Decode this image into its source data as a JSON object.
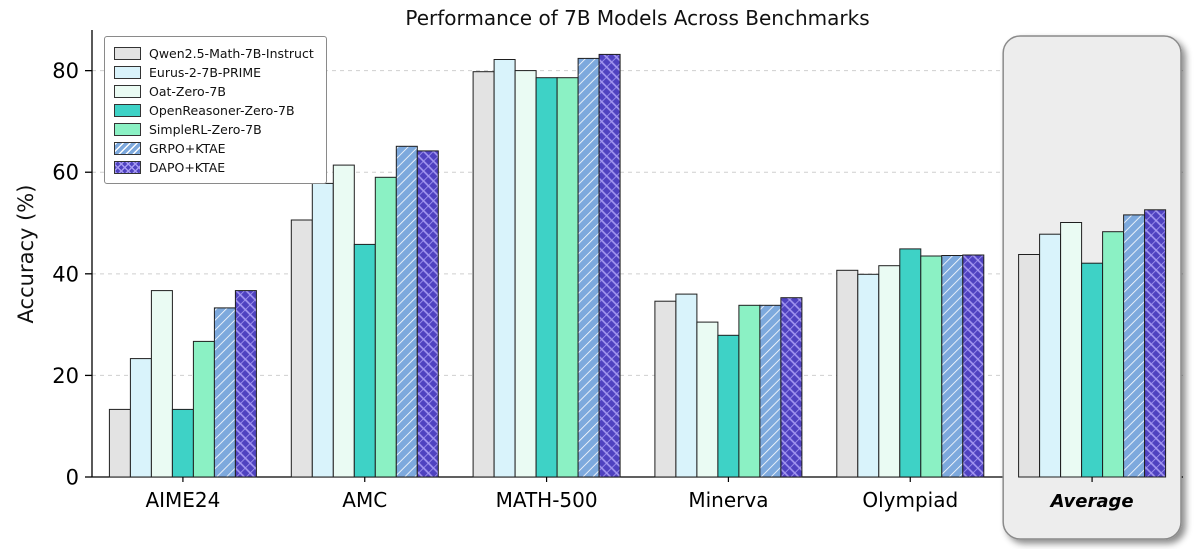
{
  "chart_data": {
    "type": "bar",
    "title": "Performance of 7B Models Across Benchmarks",
    "ylabel": "Accuracy (%)",
    "xlabel": "",
    "ylim": [
      0,
      88
    ],
    "yticks": [
      0,
      20,
      40,
      60,
      80
    ],
    "grid": "horizontal dashed",
    "legend_position": "upper left",
    "highlight_group": "Average",
    "highlight_style": {
      "fill": "#ededed",
      "border": "#8a8a8a",
      "rounded": true,
      "shadow": true
    },
    "categories": [
      "AIME24",
      "AMC",
      "MATH-500",
      "Minerva",
      "Olympiad",
      "Average"
    ],
    "series": [
      {
        "name": "Qwen2.5-Math-7B-Instruct",
        "color": "#e3e3e3",
        "hatch": "none",
        "values": [
          13.3,
          50.6,
          79.8,
          34.6,
          40.7,
          43.8
        ]
      },
      {
        "name": "Eurus-2-7B-PRIME",
        "color": "#d9f3fb",
        "hatch": "none",
        "values": [
          23.3,
          57.8,
          82.2,
          36.0,
          39.9,
          47.8
        ]
      },
      {
        "name": "Oat-Zero-7B",
        "color": "#eafbf3",
        "hatch": "none",
        "values": [
          36.7,
          61.4,
          80.0,
          30.5,
          41.6,
          50.1
        ]
      },
      {
        "name": "OpenReasoner-Zero-7B",
        "color": "#3ed2c6",
        "hatch": "none",
        "values": [
          13.3,
          45.8,
          78.6,
          27.9,
          44.9,
          42.1
        ]
      },
      {
        "name": "SimpleRL-Zero-7B",
        "color": "#8bf1c4",
        "hatch": "none",
        "values": [
          26.7,
          59.0,
          78.6,
          33.8,
          43.5,
          48.3
        ]
      },
      {
        "name": "GRPO+KTAE",
        "color": "#7da9dd",
        "hatch": "diag",
        "hatch_color": "#ffffff",
        "values": [
          33.3,
          65.1,
          82.4,
          33.8,
          43.6,
          51.6
        ]
      },
      {
        "name": "DAPO+KTAE",
        "color": "#4f42c0",
        "hatch": "cross",
        "hatch_color": "#a69af2",
        "values": [
          36.7,
          64.2,
          83.2,
          35.3,
          43.7,
          52.6
        ]
      }
    ]
  }
}
